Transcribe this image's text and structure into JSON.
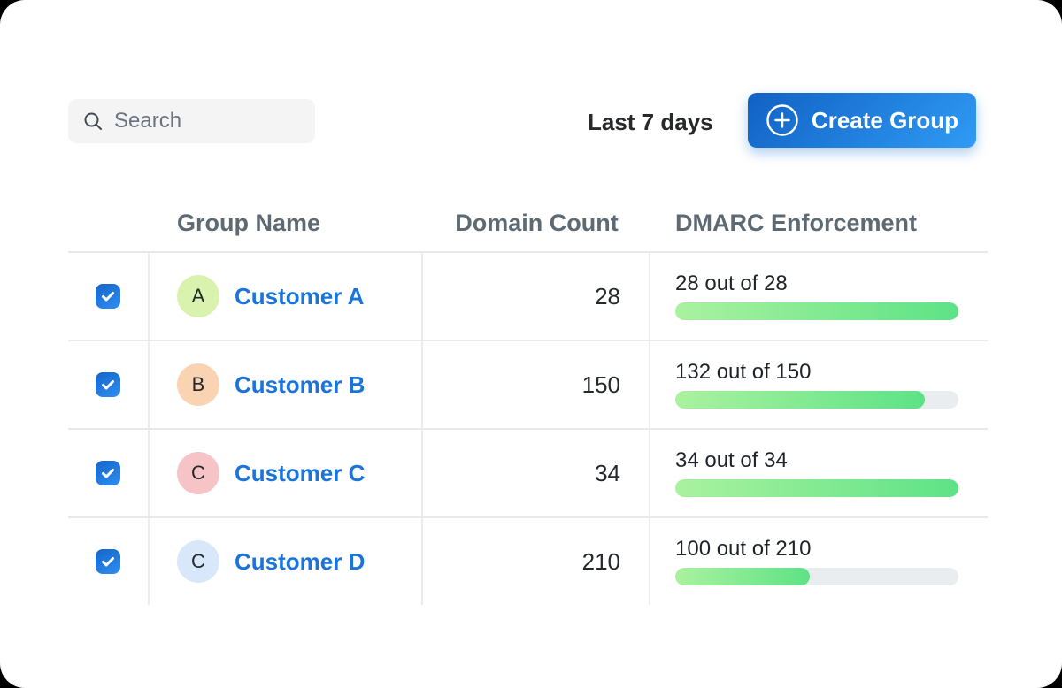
{
  "toolbar": {
    "search": {
      "placeholder": "Search"
    },
    "date_range": "Last 7 days",
    "create_group_label": "Create Group"
  },
  "table": {
    "columns": [
      {
        "label": "Group Name"
      },
      {
        "label": "Domain Count"
      },
      {
        "label": "DMARC Enforcement"
      }
    ],
    "rows": [
      {
        "selected": true,
        "avatar_letter": "A",
        "avatar_color": "#d9f3ae",
        "name": "Customer A",
        "domain_count": "28",
        "dmarc_label": "28 out of 28",
        "dmarc_done": 28,
        "dmarc_total": 28
      },
      {
        "selected": true,
        "avatar_letter": "B",
        "avatar_color": "#f9d3b2",
        "name": "Customer B",
        "domain_count": "150",
        "dmarc_label": "132 out of 150",
        "dmarc_done": 132,
        "dmarc_total": 150
      },
      {
        "selected": true,
        "avatar_letter": "C",
        "avatar_color": "#f6c4c7",
        "name": "Customer C",
        "domain_count": "34",
        "dmarc_label": "34 out of 34",
        "dmarc_done": 34,
        "dmarc_total": 34
      },
      {
        "selected": true,
        "avatar_letter": "C",
        "avatar_color": "#d8e8fa",
        "name": "Customer D",
        "domain_count": "210",
        "dmarc_label": "100 out of 210",
        "dmarc_done": 100,
        "dmarc_total": 210
      }
    ]
  },
  "colors": {
    "accent_blue": "#1a74da",
    "progress_green_start": "#aaf29f",
    "progress_green_end": "#5ee286",
    "progress_track": "#e9edf0",
    "header_text": "#5e6a73"
  }
}
